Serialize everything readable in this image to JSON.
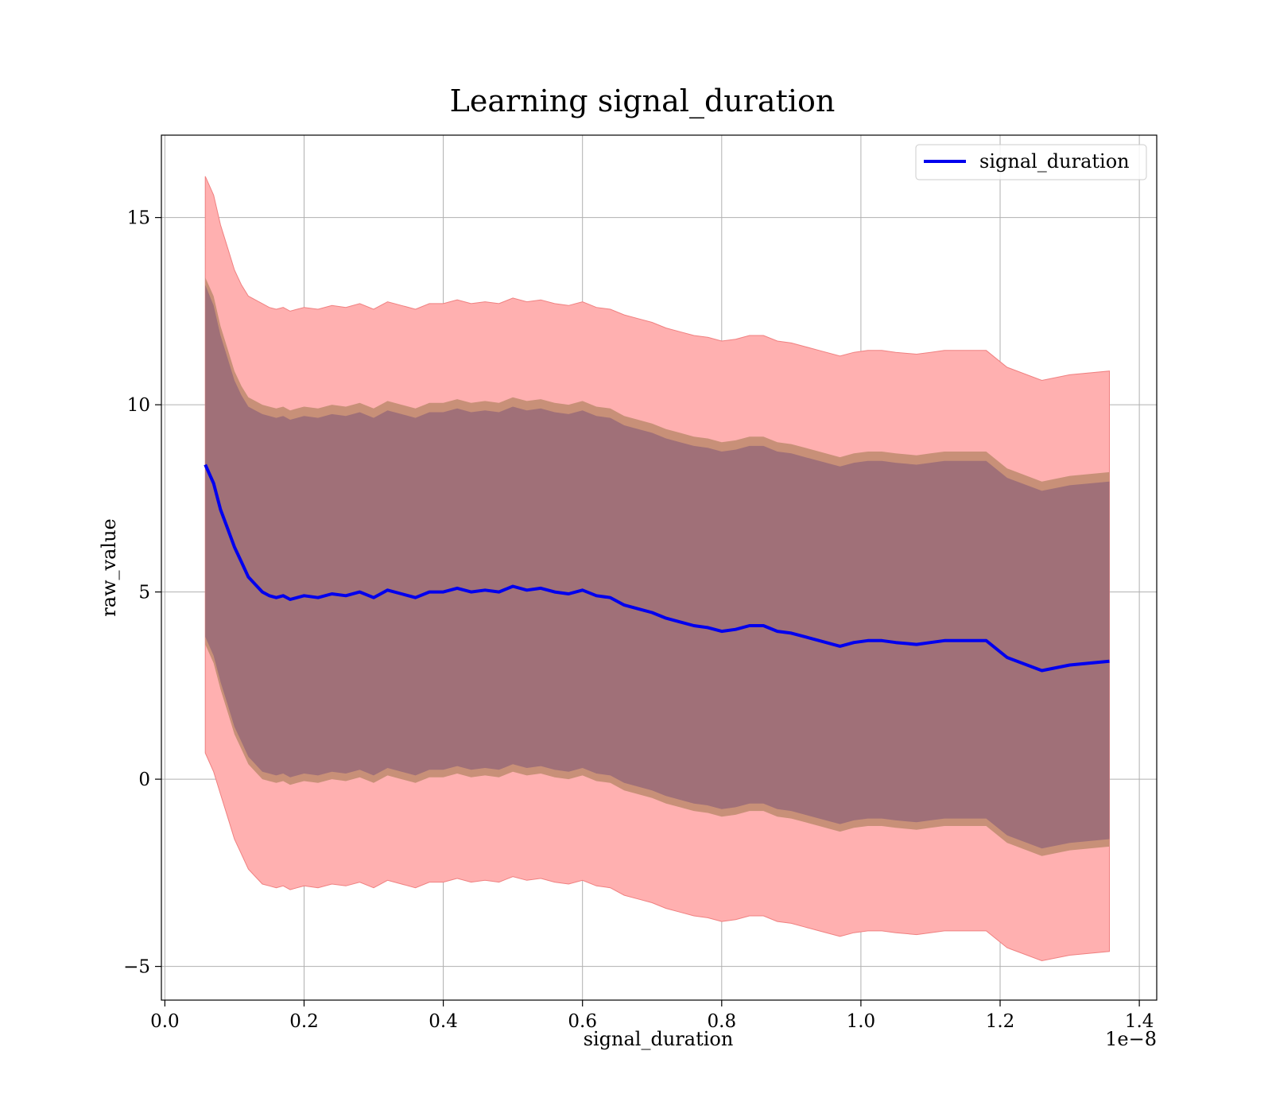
{
  "chart_data": {
    "type": "line",
    "title": "Learning signal_duration",
    "xlabel": "signal_duration",
    "ylabel": "raw_value",
    "x_offset_text": "1e−8",
    "x_scale": 1e-08,
    "xlim": [
      -0.005,
      1.425
    ],
    "ylim": [
      -5.9,
      17.2
    ],
    "xticks": [
      0.0,
      0.2,
      0.4,
      0.6,
      0.8,
      1.0,
      1.2,
      1.4
    ],
    "xtick_labels": [
      "0.0",
      "0.2",
      "0.4",
      "0.6",
      "0.8",
      "1.0",
      "1.2",
      "1.4"
    ],
    "yticks": [
      -5,
      0,
      5,
      10,
      15
    ],
    "ytick_labels": [
      "−5",
      "0",
      "5",
      "10",
      "15"
    ],
    "grid": true,
    "legend": {
      "position": "upper right",
      "entries": [
        "signal_duration"
      ]
    },
    "colors": {
      "line": "#0000ee",
      "outer_band": "#ffb0b0",
      "outer_band_edge": "#f08080",
      "middle_band": "#c89078",
      "inner_band": "#a07078",
      "grid": "#b0b0b0"
    },
    "x": [
      0.058,
      0.07,
      0.08,
      0.09,
      0.1,
      0.11,
      0.12,
      0.13,
      0.14,
      0.15,
      0.16,
      0.17,
      0.18,
      0.19,
      0.2,
      0.22,
      0.24,
      0.26,
      0.28,
      0.3,
      0.32,
      0.34,
      0.36,
      0.38,
      0.4,
      0.42,
      0.44,
      0.46,
      0.48,
      0.5,
      0.52,
      0.54,
      0.56,
      0.58,
      0.6,
      0.62,
      0.64,
      0.66,
      0.68,
      0.7,
      0.72,
      0.74,
      0.76,
      0.78,
      0.8,
      0.82,
      0.84,
      0.86,
      0.88,
      0.9,
      0.92,
      0.94,
      0.97,
      0.99,
      1.01,
      1.03,
      1.05,
      1.08,
      1.1,
      1.12,
      1.14,
      1.18,
      1.21,
      1.26,
      1.3,
      1.357
    ],
    "series": [
      {
        "name": "signal_duration",
        "values": [
          8.4,
          7.9,
          7.2,
          6.7,
          6.2,
          5.8,
          5.4,
          5.2,
          5.0,
          4.9,
          4.85,
          4.9,
          4.8,
          4.85,
          4.9,
          4.85,
          4.95,
          4.9,
          5.0,
          4.85,
          5.05,
          4.95,
          4.85,
          5.0,
          5.0,
          5.1,
          5.0,
          5.05,
          5.0,
          5.15,
          5.05,
          5.1,
          5.0,
          4.95,
          5.05,
          4.9,
          4.85,
          4.65,
          4.55,
          4.45,
          4.3,
          4.2,
          4.1,
          4.05,
          3.95,
          4.0,
          4.1,
          4.1,
          3.95,
          3.9,
          3.8,
          3.7,
          3.55,
          3.65,
          3.7,
          3.7,
          3.65,
          3.6,
          3.65,
          3.7,
          3.7,
          3.7,
          3.25,
          2.9,
          3.05,
          3.15
        ],
        "band_outer_upper": [
          16.1,
          15.6,
          14.8,
          14.2,
          13.6,
          13.2,
          12.9,
          12.8,
          12.7,
          12.6,
          12.55,
          12.6,
          12.5,
          12.55,
          12.6,
          12.55,
          12.65,
          12.6,
          12.7,
          12.55,
          12.75,
          12.65,
          12.55,
          12.7,
          12.7,
          12.8,
          12.7,
          12.75,
          12.7,
          12.85,
          12.75,
          12.8,
          12.7,
          12.65,
          12.75,
          12.6,
          12.55,
          12.4,
          12.3,
          12.2,
          12.05,
          11.95,
          11.85,
          11.8,
          11.7,
          11.75,
          11.85,
          11.85,
          11.7,
          11.65,
          11.55,
          11.45,
          11.3,
          11.4,
          11.45,
          11.45,
          11.4,
          11.35,
          11.4,
          11.45,
          11.45,
          11.45,
          11.0,
          10.65,
          10.8,
          10.9
        ],
        "band_outer_lower": [
          0.7,
          0.2,
          -0.4,
          -1.0,
          -1.6,
          -2.0,
          -2.4,
          -2.6,
          -2.8,
          -2.85,
          -2.9,
          -2.85,
          -2.95,
          -2.9,
          -2.85,
          -2.9,
          -2.8,
          -2.85,
          -2.75,
          -2.9,
          -2.7,
          -2.8,
          -2.9,
          -2.75,
          -2.75,
          -2.65,
          -2.75,
          -2.7,
          -2.75,
          -2.6,
          -2.7,
          -2.65,
          -2.75,
          -2.8,
          -2.7,
          -2.85,
          -2.9,
          -3.1,
          -3.2,
          -3.3,
          -3.45,
          -3.55,
          -3.65,
          -3.7,
          -3.8,
          -3.75,
          -3.65,
          -3.65,
          -3.8,
          -3.85,
          -3.95,
          -4.05,
          -4.2,
          -4.1,
          -4.05,
          -4.05,
          -4.1,
          -4.15,
          -4.1,
          -4.05,
          -4.05,
          -4.05,
          -4.5,
          -4.85,
          -4.7,
          -4.6
        ],
        "band_mid_upper": [
          13.4,
          12.9,
          12.1,
          11.5,
          10.9,
          10.5,
          10.2,
          10.1,
          10.0,
          9.95,
          9.9,
          9.95,
          9.85,
          9.9,
          9.95,
          9.9,
          10.0,
          9.95,
          10.05,
          9.9,
          10.1,
          10.0,
          9.9,
          10.05,
          10.05,
          10.15,
          10.05,
          10.1,
          10.05,
          10.2,
          10.1,
          10.15,
          10.05,
          10.0,
          10.1,
          9.95,
          9.9,
          9.7,
          9.6,
          9.5,
          9.35,
          9.25,
          9.15,
          9.1,
          9.0,
          9.05,
          9.15,
          9.15,
          9.0,
          8.95,
          8.85,
          8.75,
          8.6,
          8.7,
          8.75,
          8.75,
          8.7,
          8.65,
          8.7,
          8.75,
          8.75,
          8.75,
          8.3,
          7.95,
          8.1,
          8.2
        ],
        "band_mid_lower": [
          3.6,
          3.1,
          2.4,
          1.8,
          1.2,
          0.8,
          0.4,
          0.2,
          0.0,
          -0.05,
          -0.1,
          -0.05,
          -0.15,
          -0.1,
          -0.05,
          -0.1,
          0.0,
          -0.05,
          0.05,
          -0.1,
          0.1,
          0.0,
          -0.1,
          0.05,
          0.05,
          0.15,
          0.05,
          0.1,
          0.05,
          0.2,
          0.1,
          0.15,
          0.05,
          0.0,
          0.1,
          -0.05,
          -0.1,
          -0.3,
          -0.4,
          -0.5,
          -0.65,
          -0.75,
          -0.85,
          -0.9,
          -1.0,
          -0.95,
          -0.85,
          -0.85,
          -1.0,
          -1.05,
          -1.15,
          -1.25,
          -1.4,
          -1.3,
          -1.25,
          -1.25,
          -1.3,
          -1.35,
          -1.3,
          -1.25,
          -1.25,
          -1.25,
          -1.7,
          -2.05,
          -1.9,
          -1.8
        ],
        "band_inner_upper": [
          13.2,
          12.65,
          11.85,
          11.25,
          10.65,
          10.25,
          9.95,
          9.85,
          9.75,
          9.7,
          9.65,
          9.7,
          9.6,
          9.65,
          9.7,
          9.65,
          9.75,
          9.7,
          9.8,
          9.65,
          9.85,
          9.75,
          9.65,
          9.8,
          9.8,
          9.9,
          9.8,
          9.85,
          9.8,
          9.95,
          9.85,
          9.9,
          9.8,
          9.75,
          9.85,
          9.7,
          9.65,
          9.45,
          9.35,
          9.25,
          9.1,
          9.0,
          8.9,
          8.85,
          8.75,
          8.8,
          8.9,
          8.9,
          8.75,
          8.7,
          8.6,
          8.5,
          8.35,
          8.45,
          8.5,
          8.5,
          8.45,
          8.4,
          8.45,
          8.5,
          8.5,
          8.5,
          8.05,
          7.7,
          7.85,
          7.95
        ],
        "band_inner_lower": [
          3.8,
          3.3,
          2.6,
          2.0,
          1.4,
          1.0,
          0.6,
          0.4,
          0.2,
          0.15,
          0.1,
          0.15,
          0.05,
          0.1,
          0.15,
          0.1,
          0.2,
          0.15,
          0.25,
          0.1,
          0.3,
          0.2,
          0.1,
          0.25,
          0.25,
          0.35,
          0.25,
          0.3,
          0.25,
          0.4,
          0.3,
          0.35,
          0.25,
          0.2,
          0.3,
          0.15,
          0.1,
          -0.1,
          -0.2,
          -0.3,
          -0.45,
          -0.55,
          -0.65,
          -0.7,
          -0.8,
          -0.75,
          -0.65,
          -0.65,
          -0.8,
          -0.85,
          -0.95,
          -1.05,
          -1.2,
          -1.1,
          -1.05,
          -1.05,
          -1.1,
          -1.15,
          -1.1,
          -1.05,
          -1.05,
          -1.05,
          -1.5,
          -1.85,
          -1.7,
          -1.6
        ]
      }
    ]
  }
}
